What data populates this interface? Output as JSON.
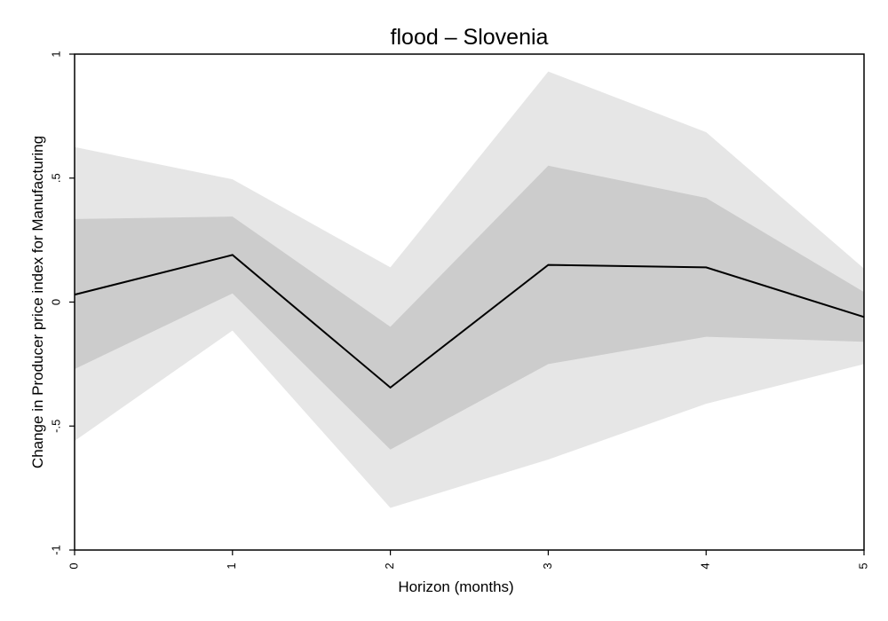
{
  "chart_data": {
    "type": "line",
    "title": "flood – Slovenia",
    "xlabel": "Horizon (months)",
    "ylabel": "Change in Producer price index for Manufacturing",
    "xlim": [
      0,
      5
    ],
    "ylim": [
      -1,
      1
    ],
    "x_ticks": [
      "0",
      "1",
      "2",
      "3",
      "4",
      "5"
    ],
    "y_ticks": [
      "-1",
      "-.5",
      "0",
      ".5",
      "1"
    ],
    "x": [
      0,
      1,
      2,
      3,
      4,
      5
    ],
    "series": [
      {
        "values": [
          0.03,
          0.19,
          -0.345,
          0.15,
          0.14,
          -0.06
        ],
        "color": "#000000"
      }
    ],
    "bands": [
      {
        "lower": [
          -0.56,
          -0.115,
          -0.83,
          -0.635,
          -0.41,
          -0.25
        ],
        "upper": [
          0.625,
          0.495,
          0.14,
          0.93,
          0.685,
          0.135
        ],
        "color": "#e6e6e6"
      },
      {
        "lower": [
          -0.27,
          0.035,
          -0.595,
          -0.25,
          -0.14,
          -0.16
        ],
        "upper": [
          0.335,
          0.345,
          -0.1,
          0.55,
          0.42,
          0.04
        ],
        "color": "#cccccc"
      }
    ],
    "grid": false,
    "legend": "none"
  }
}
